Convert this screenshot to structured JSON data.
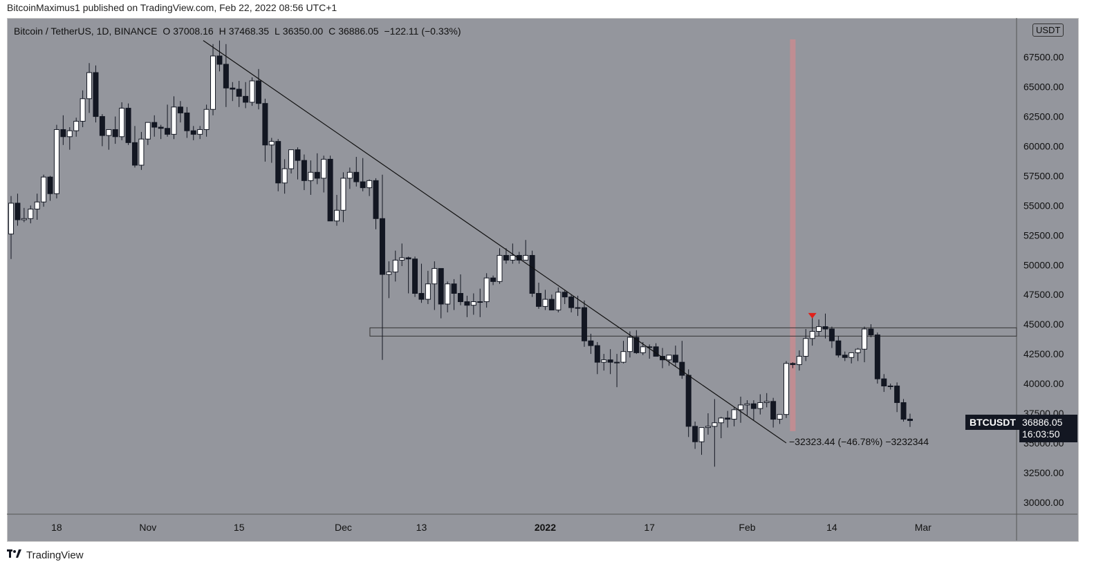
{
  "header": {
    "publisher_line": "BitcoinMaximus1 published on TradingView.com, Feb 22, 2022 08:56 UTC+1"
  },
  "legend": {
    "symbol": "Bitcoin / TetherUS, 1D, BINANCE",
    "o_label": "O",
    "o_value": "37008.16",
    "h_label": "H",
    "h_value": "37468.35",
    "l_label": "L",
    "l_value": "36350.00",
    "c_label": "C",
    "c_value": "36886.05",
    "change": "−122.11 (−0.33%)"
  },
  "unit": "USDT",
  "ticker_tag": "BTCUSDT",
  "last_price": "36886.05",
  "countdown": "16:03:50",
  "measure_label": "−32323.44 (−46.78%) −3232344",
  "footer": {
    "brand": "TradingView"
  },
  "colors": {
    "background": "#94969d",
    "up_candle": "#ffffff",
    "down_candle": "#131722",
    "highlight_band": "#c88c91",
    "arrow": "#e0201a"
  },
  "chart_data": {
    "type": "candlestick",
    "y_ticks": [
      "30000.00",
      "32500.00",
      "35000.00",
      "37500.00",
      "40000.00",
      "42500.00",
      "45000.00",
      "47500.00",
      "50000.00",
      "52500.00",
      "55000.00",
      "57500.00",
      "60000.00",
      "62500.00",
      "65000.00",
      "67500.00"
    ],
    "ylim": [
      29000,
      70800
    ],
    "x_ticks": [
      {
        "label": "18",
        "idx": 7
      },
      {
        "label": "Nov",
        "idx": 21
      },
      {
        "label": "15",
        "idx": 35
      },
      {
        "label": "Dec",
        "idx": 51
      },
      {
        "label": "13",
        "idx": 63
      },
      {
        "label": "2022",
        "idx": 82,
        "bold": true
      },
      {
        "label": "17",
        "idx": 98
      },
      {
        "label": "Feb",
        "idx": 113
      },
      {
        "label": "14",
        "idx": 126
      },
      {
        "label": "Mar",
        "idx": 140
      }
    ],
    "candles": [
      [
        52600,
        55800,
        50500,
        55200
      ],
      [
        55200,
        56000,
        53300,
        53800
      ],
      [
        53800,
        54800,
        53600,
        53900
      ],
      [
        53900,
        55000,
        53500,
        54700
      ],
      [
        54700,
        56000,
        53800,
        55300
      ],
      [
        55300,
        57600,
        54900,
        57400
      ],
      [
        57400,
        57500,
        55400,
        56000
      ],
      [
        56000,
        61800,
        55600,
        61400
      ],
      [
        61400,
        62600,
        60100,
        60800
      ],
      [
        60800,
        61600,
        59700,
        61300
      ],
      [
        61300,
        62400,
        60800,
        62100
      ],
      [
        62100,
        64700,
        61600,
        64000
      ],
      [
        64000,
        67000,
        62800,
        66200
      ],
      [
        66200,
        66800,
        62000,
        62500
      ],
      [
        62500,
        62700,
        60000,
        60900
      ],
      [
        60900,
        61300,
        59700,
        61400
      ],
      [
        61400,
        62500,
        60200,
        60800
      ],
      [
        60800,
        63700,
        60500,
        63200
      ],
      [
        63200,
        63600,
        60100,
        60300
      ],
      [
        60300,
        61700,
        58200,
        58400
      ],
      [
        58400,
        61200,
        58000,
        60600
      ],
      [
        60600,
        62000,
        60100,
        62000
      ],
      [
        62000,
        62600,
        60800,
        61600
      ],
      [
        61600,
        61800,
        60600,
        61500
      ],
      [
        61500,
        63500,
        60800,
        61000
      ],
      [
        61000,
        64200,
        60600,
        63300
      ],
      [
        63300,
        63800,
        62000,
        62800
      ],
      [
        62800,
        63300,
        60700,
        61300
      ],
      [
        61300,
        61700,
        60500,
        61000
      ],
      [
        61000,
        61700,
        60600,
        61400
      ],
      [
        61400,
        63500,
        60800,
        63100
      ],
      [
        63100,
        68600,
        62600,
        67600
      ],
      [
        67600,
        68900,
        66300,
        66900
      ],
      [
        66900,
        68600,
        63300,
        64900
      ],
      [
        64900,
        65400,
        63800,
        64800
      ],
      [
        64800,
        65500,
        63300,
        64200
      ],
      [
        64200,
        65400,
        63200,
        63700
      ],
      [
        63700,
        65800,
        63400,
        65500
      ],
      [
        65500,
        66500,
        63100,
        63600
      ],
      [
        63600,
        64000,
        58700,
        60100
      ],
      [
        60100,
        60700,
        58600,
        60400
      ],
      [
        60400,
        60600,
        56200,
        56900
      ],
      [
        56900,
        58900,
        56000,
        58100
      ],
      [
        58100,
        59600,
        57700,
        59700
      ],
      [
        59700,
        59900,
        57200,
        58800
      ],
      [
        58800,
        59300,
        56300,
        57100
      ],
      [
        57100,
        58800,
        55900,
        57800
      ],
      [
        57800,
        59400,
        56800,
        57300
      ],
      [
        57300,
        59200,
        56100,
        58900
      ],
      [
        58900,
        59200,
        53700,
        53700
      ],
      [
        53700,
        55900,
        53300,
        54600
      ],
      [
        54600,
        57800,
        53600,
        57300
      ],
      [
        57300,
        58200,
        56400,
        57800
      ],
      [
        57800,
        59100,
        56600,
        57000
      ],
      [
        57000,
        59000,
        56200,
        56500
      ],
      [
        56500,
        57200,
        55800,
        57100
      ],
      [
        57100,
        57300,
        53000,
        53900
      ],
      [
        53900,
        57600,
        42000,
        49200
      ],
      [
        49200,
        50300,
        47200,
        49400
      ],
      [
        49400,
        51200,
        48600,
        50400
      ],
      [
        50400,
        51800,
        49900,
        50600
      ],
      [
        50600,
        50700,
        47600,
        50500
      ],
      [
        50500,
        50700,
        47300,
        47600
      ],
      [
        47600,
        50100,
        46800,
        47100
      ],
      [
        47100,
        49500,
        46700,
        48400
      ],
      [
        48400,
        50300,
        46200,
        49700
      ],
      [
        49700,
        49500,
        45500,
        46700
      ],
      [
        46700,
        48600,
        46000,
        48400
      ],
      [
        48400,
        48800,
        46200,
        47600
      ],
      [
        47600,
        49200,
        46600,
        46900
      ],
      [
        46900,
        47400,
        45600,
        46600
      ],
      [
        46600,
        47600,
        45800,
        46900
      ],
      [
        46900,
        48000,
        45600,
        46900
      ],
      [
        46900,
        49300,
        46400,
        48900
      ],
      [
        48900,
        49100,
        48300,
        48600
      ],
      [
        48600,
        51400,
        48400,
        50800
      ],
      [
        50800,
        51400,
        50100,
        50400
      ],
      [
        50400,
        51800,
        50100,
        50800
      ],
      [
        50800,
        51100,
        50100,
        50400
      ],
      [
        50400,
        52100,
        50400,
        50800
      ],
      [
        50800,
        51200,
        47300,
        47600
      ],
      [
        47600,
        48500,
        46300,
        46500
      ],
      [
        46500,
        47900,
        46200,
        47100
      ],
      [
        47100,
        47500,
        46200,
        46200
      ],
      [
        46200,
        48100,
        46000,
        47700
      ],
      [
        47700,
        47900,
        46700,
        47300
      ],
      [
        47300,
        47500,
        46000,
        46400
      ],
      [
        46400,
        47400,
        45700,
        46400
      ],
      [
        46400,
        47000,
        43100,
        43600
      ],
      [
        43600,
        44200,
        42500,
        43200
      ],
      [
        43200,
        43500,
        40800,
        41800
      ],
      [
        41800,
        42500,
        41100,
        42000
      ],
      [
        42000,
        42900,
        40800,
        41800
      ],
      [
        41800,
        42500,
        39700,
        41800
      ],
      [
        41800,
        43600,
        41700,
        42700
      ],
      [
        42700,
        44400,
        42200,
        43900
      ],
      [
        43900,
        44500,
        42500,
        42600
      ],
      [
        42600,
        43500,
        42400,
        43100
      ],
      [
        43100,
        43300,
        42100,
        43100
      ],
      [
        43100,
        43400,
        42500,
        42300
      ],
      [
        42300,
        43000,
        41300,
        42000
      ],
      [
        42000,
        42400,
        41500,
        42400
      ],
      [
        42400,
        43200,
        41400,
        41800
      ],
      [
        41800,
        43600,
        40400,
        40700
      ],
      [
        40700,
        41200,
        35500,
        36400
      ],
      [
        36400,
        36800,
        34500,
        35100
      ],
      [
        35100,
        36300,
        34000,
        36300
      ],
      [
        36300,
        37500,
        35700,
        36400
      ],
      [
        36400,
        38700,
        33000,
        36700
      ],
      [
        36700,
        37200,
        35400,
        37100
      ],
      [
        37100,
        37700,
        36300,
        37000
      ],
      [
        37000,
        38000,
        36400,
        37800
      ],
      [
        37800,
        38900,
        36700,
        38200
      ],
      [
        38200,
        38600,
        37300,
        38300
      ],
      [
        38300,
        38600,
        36900,
        37900
      ],
      [
        37900,
        39100,
        37400,
        38400
      ],
      [
        38400,
        39200,
        38000,
        38500
      ],
      [
        38500,
        38800,
        36300,
        37000
      ],
      [
        37000,
        37400,
        36600,
        37400
      ],
      [
        37400,
        41900,
        37100,
        41700
      ],
      [
        41700,
        41800,
        41300,
        41600
      ],
      [
        41600,
        42800,
        41100,
        42300
      ],
      [
        42300,
        44600,
        41900,
        43800
      ],
      [
        43800,
        45800,
        43200,
        44400
      ],
      [
        44400,
        45400,
        44000,
        44800
      ],
      [
        44800,
        45900,
        43800,
        44600
      ],
      [
        44600,
        44800,
        43000,
        43600
      ],
      [
        43600,
        44000,
        42200,
        42400
      ],
      [
        42400,
        42700,
        41900,
        42200
      ],
      [
        42200,
        42400,
        41700,
        42600
      ],
      [
        42600,
        43000,
        41900,
        42900
      ],
      [
        42900,
        44800,
        41800,
        44600
      ],
      [
        44600,
        45000,
        43900,
        44100
      ],
      [
        44100,
        44300,
        40000,
        40400
      ],
      [
        40400,
        40800,
        39300,
        39800
      ],
      [
        39800,
        40000,
        39500,
        39800
      ],
      [
        39800,
        40100,
        37600,
        38400
      ],
      [
        38400,
        38700,
        36800,
        37000
      ],
      [
        37008,
        37468,
        36350,
        36886
      ]
    ],
    "trendline": {
      "from_idx": 29.5,
      "from_price": 68900,
      "to_idx": 119,
      "to_price": 35000
    },
    "support_zone": [
      44000,
      44700
    ],
    "highlight_band_idx": 120,
    "arrow_idx": 123,
    "arrow_price": 45600
  }
}
